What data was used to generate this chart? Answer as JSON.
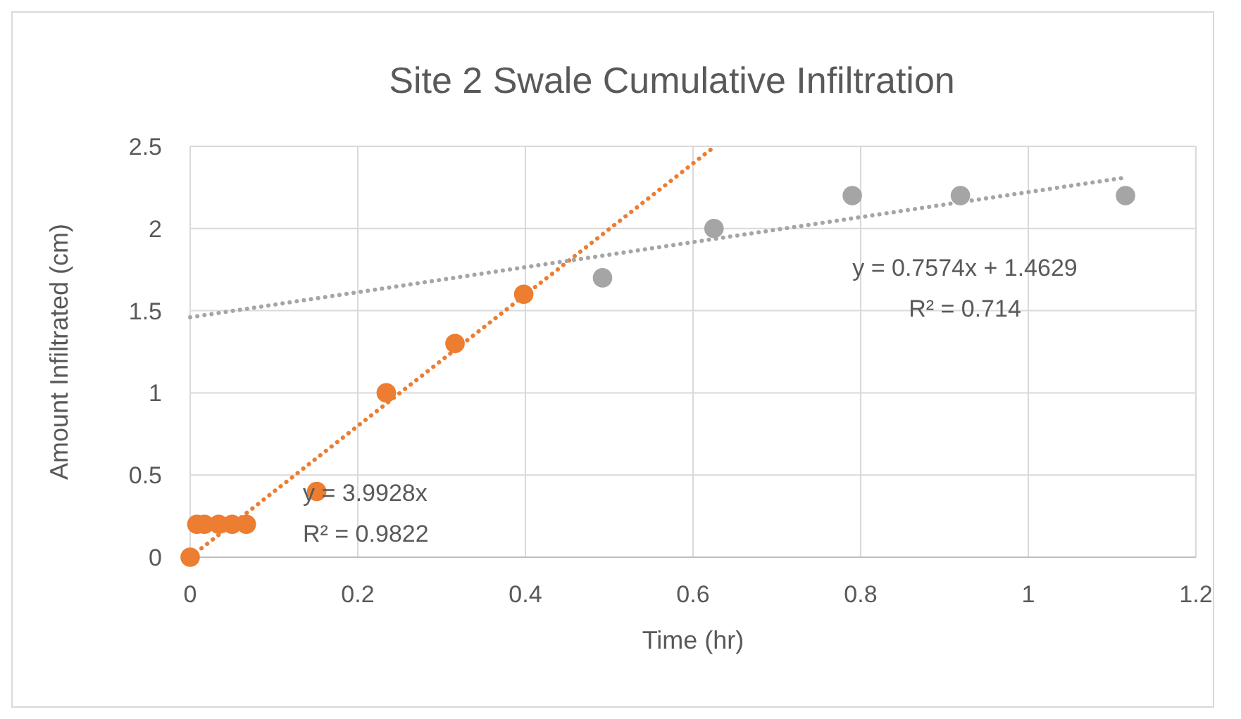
{
  "chart_data": {
    "type": "scatter",
    "title": "Site 2 Swale Cumulative Infiltration",
    "xlabel": "Time (hr)",
    "ylabel": "Amount Infiltrated (cm)",
    "xlim": [
      0,
      1.2
    ],
    "xticks": [
      0,
      0.2,
      0.4,
      0.6,
      0.8,
      1,
      1.2
    ],
    "ylim": [
      0,
      2.5
    ],
    "yticks": [
      0,
      0.5,
      1,
      1.5,
      2,
      2.5
    ],
    "grid": true,
    "marker": "circle",
    "series": [
      {
        "color": "#ed7d31",
        "x": [
          0,
          0.008,
          0.017,
          0.034,
          0.05,
          0.067,
          0.151,
          0.234,
          0.316,
          0.398
        ],
        "values": [
          0,
          0.2,
          0.2,
          0.2,
          0.2,
          0.2,
          0.4,
          1.0,
          1.3,
          1.6
        ]
      },
      {
        "color": "#a5a5a5",
        "x": [
          0.492,
          0.625,
          0.79,
          0.919,
          1.116
        ],
        "values": [
          1.7,
          2.0,
          2.2,
          2.2,
          2.2
        ]
      },
      {
        "type": "line",
        "color": "#ed7d31",
        "line_style": "dotted",
        "marker": "none",
        "x": [
          0,
          0.6261
        ],
        "values": [
          0,
          2.5
        ]
      },
      {
        "type": "line",
        "color": "#a5a5a5",
        "line_style": "dotted",
        "marker": "none",
        "x": [
          0,
          1.116
        ],
        "values": [
          1.46,
          2.31
        ]
      }
    ],
    "annotations": [
      "y = 3.9928x\nR² = 0.9822",
      "y = 0.7574x + 1.4629\nR² = 0.714"
    ]
  }
}
